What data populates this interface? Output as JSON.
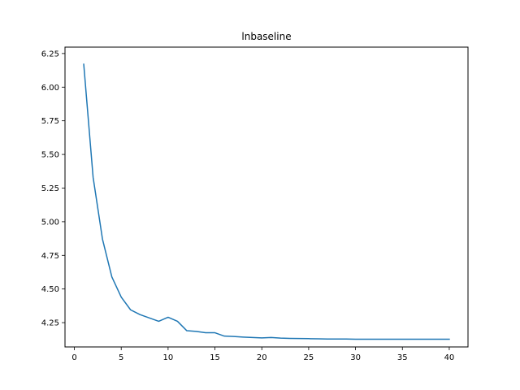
{
  "chart_data": {
    "type": "line",
    "title": "lnbaseline",
    "xlabel": "",
    "ylabel": "",
    "xlim": [
      -1,
      42
    ],
    "ylim": [
      4.0695,
      6.2975
    ],
    "xticks": [
      0,
      5,
      10,
      15,
      20,
      25,
      30,
      35,
      40
    ],
    "xtick_labels": [
      "0",
      "5",
      "10",
      "15",
      "20",
      "25",
      "30",
      "35",
      "40"
    ],
    "yticks": [
      4.25,
      4.5,
      4.75,
      5.0,
      5.25,
      5.5,
      5.75,
      6.0,
      6.25
    ],
    "ytick_labels": [
      "4.25",
      "4.50",
      "4.75",
      "5.00",
      "5.25",
      "5.50",
      "5.75",
      "6.00",
      "6.25"
    ],
    "grid": false,
    "series": [
      {
        "color": "#1f77b4",
        "x": [
          1,
          2,
          3,
          4,
          5,
          6,
          7,
          8,
          9,
          10,
          11,
          12,
          13,
          14,
          15,
          16,
          17,
          18,
          19,
          20,
          21,
          22,
          23,
          24,
          25,
          26,
          27,
          28,
          29,
          30,
          31,
          32,
          33,
          34,
          35,
          36,
          37,
          38,
          39,
          40
        ],
        "y": [
          6.17,
          5.33,
          4.87,
          4.59,
          4.44,
          4.345,
          4.31,
          4.285,
          4.26,
          4.29,
          4.26,
          4.19,
          4.185,
          4.175,
          4.175,
          4.15,
          4.147,
          4.143,
          4.14,
          4.137,
          4.14,
          4.135,
          4.133,
          4.132,
          4.131,
          4.13,
          4.128,
          4.128,
          4.128,
          4.127,
          4.127,
          4.127,
          4.127,
          4.127,
          4.127,
          4.127,
          4.127,
          4.127,
          4.127,
          4.127
        ]
      }
    ]
  }
}
